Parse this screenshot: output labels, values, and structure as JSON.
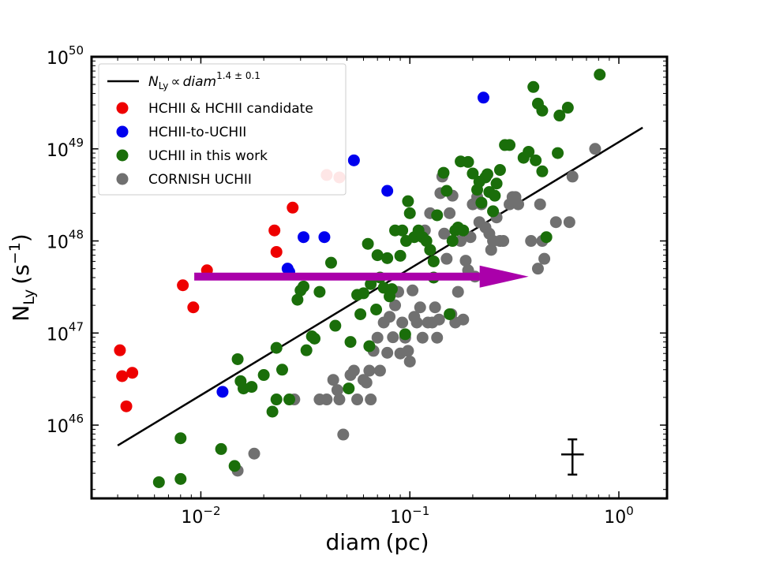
{
  "chart_data": {
    "type": "scatter",
    "xscale": "log",
    "yscale": "log",
    "xlim": [
      0.003,
      1.7
    ],
    "ylim": [
      1.6e+45,
      1e+50
    ],
    "xlabel": {
      "main": "diam",
      "unit": "(pc)"
    },
    "ylabel": {
      "main": "N",
      "sub": "Ly",
      "unit_open": "(s",
      "unit_exp": "−1",
      "unit_close": ")"
    },
    "x_ticks": [
      {
        "value": 0.01,
        "base": "10",
        "exp": "−2"
      },
      {
        "value": 0.1,
        "base": "10",
        "exp": "−1"
      },
      {
        "value": 1,
        "base": "10",
        "exp": "0"
      }
    ],
    "y_ticks": [
      {
        "value": 1e+46,
        "base": "10",
        "exp": "46"
      },
      {
        "value": 1e+47,
        "base": "10",
        "exp": "47"
      },
      {
        "value": 1e+48,
        "base": "10",
        "exp": "48"
      },
      {
        "value": 1e+49,
        "base": "10",
        "exp": "49"
      },
      {
        "value": 1e+50,
        "base": "10",
        "exp": "50"
      }
    ],
    "grid": false,
    "legend_position": "upper-left",
    "fit_line": {
      "label_var": "N",
      "label_sub": "Ly",
      "label_prop": "∝",
      "label_x": "diam",
      "label_exp": "1.4 ± 0.1",
      "x": [
        0.004,
        1.3
      ],
      "y": [
        6e+45,
        1.7e+49
      ],
      "color": "#000000"
    },
    "arrow": {
      "x_start": 0.0093,
      "x_end": 0.37,
      "y": 4.1e+47,
      "color": "#aa00aa"
    },
    "error_bar": {
      "x": 0.6,
      "y": 4.8e+45,
      "x_low": 0.53,
      "x_high": 0.68,
      "y_low": 2.9e+45,
      "y_high": 7e+45,
      "color": "#000000"
    },
    "series": [
      {
        "name": "CORNISH UCHII",
        "color": "#707070",
        "points": [
          [
            0.015,
            3.2e+45
          ],
          [
            0.018,
            4.9e+45
          ],
          [
            0.028,
            1.9e+46
          ],
          [
            0.037,
            1.9e+46
          ],
          [
            0.04,
            1.9e+46
          ],
          [
            0.043,
            3.1e+46
          ],
          [
            0.045,
            2.4e+46
          ],
          [
            0.046,
            1.9e+46
          ],
          [
            0.048,
            7.9e+45
          ],
          [
            0.052,
            3.5e+46
          ],
          [
            0.054,
            3.9e+46
          ],
          [
            0.056,
            1.9e+46
          ],
          [
            0.06,
            3.1e+46
          ],
          [
            0.062,
            2.9e+46
          ],
          [
            0.064,
            3.9e+46
          ],
          [
            0.065,
            1.9e+46
          ],
          [
            0.067,
            6.4e+46
          ],
          [
            0.07,
            8.9e+46
          ],
          [
            0.072,
            3.9e+46
          ],
          [
            0.075,
            1.3e+47
          ],
          [
            0.078,
            6.1e+46
          ],
          [
            0.08,
            1.5e+47
          ],
          [
            0.083,
            9e+46
          ],
          [
            0.085,
            2e+47
          ],
          [
            0.088,
            2.8e+47
          ],
          [
            0.09,
            6e+46
          ],
          [
            0.092,
            1.3e+47
          ],
          [
            0.095,
            8.9e+46
          ],
          [
            0.098,
            6.4e+46
          ],
          [
            0.1,
            4.9e+46
          ],
          [
            0.103,
            2.9e+47
          ],
          [
            0.105,
            1.5e+47
          ],
          [
            0.108,
            1.3e+47
          ],
          [
            0.112,
            1.9e+47
          ],
          [
            0.115,
            8.9e+46
          ],
          [
            0.118,
            1.3e+48
          ],
          [
            0.122,
            1.3e+47
          ],
          [
            0.125,
            2e+48
          ],
          [
            0.128,
            1.3e+47
          ],
          [
            0.132,
            1.9e+47
          ],
          [
            0.135,
            8.9e+46
          ],
          [
            0.138,
            1.4e+47
          ],
          [
            0.14,
            3.3e+48
          ],
          [
            0.143,
            5e+48
          ],
          [
            0.146,
            1.2e+48
          ],
          [
            0.15,
            6.4e+47
          ],
          [
            0.155,
            2e+48
          ],
          [
            0.158,
            1.6e+47
          ],
          [
            0.16,
            3.1e+48
          ],
          [
            0.165,
            1.3e+47
          ],
          [
            0.17,
            2.8e+47
          ],
          [
            0.175,
            1e+48
          ],
          [
            0.18,
            1.4e+47
          ],
          [
            0.185,
            6.1e+47
          ],
          [
            0.19,
            4.8e+47
          ],
          [
            0.195,
            1.1e+48
          ],
          [
            0.2,
            2.5e+48
          ],
          [
            0.205,
            4.1e+47
          ],
          [
            0.21,
            3e+48
          ],
          [
            0.215,
            1.6e+48
          ],
          [
            0.22,
            2.5e+48
          ],
          [
            0.23,
            1.4e+48
          ],
          [
            0.24,
            1.2e+48
          ],
          [
            0.245,
            8e+47
          ],
          [
            0.25,
            1e+48
          ],
          [
            0.26,
            1.8e+48
          ],
          [
            0.27,
            1e+48
          ],
          [
            0.28,
            1e+48
          ],
          [
            0.3,
            2.5e+48
          ],
          [
            0.31,
            3e+48
          ],
          [
            0.32,
            3e+48
          ],
          [
            0.33,
            2.5e+48
          ],
          [
            0.38,
            1e+48
          ],
          [
            0.41,
            5e+47
          ],
          [
            0.42,
            2.5e+48
          ],
          [
            0.43,
            1e+48
          ],
          [
            0.44,
            6.4e+47
          ],
          [
            0.5,
            1.6e+48
          ],
          [
            0.58,
            1.6e+48
          ],
          [
            0.6,
            5e+48
          ],
          [
            0.77,
            1e+49
          ]
        ]
      },
      {
        "name": "UCHII in this work",
        "color": "#1a6e0a",
        "points": [
          [
            0.0063,
            2.4e+45
          ],
          [
            0.008,
            2.6e+45
          ],
          [
            0.008,
            7.2e+45
          ],
          [
            0.0125,
            5.5e+45
          ],
          [
            0.0145,
            3.6e+45
          ],
          [
            0.015,
            5.2e+46
          ],
          [
            0.0155,
            3e+46
          ],
          [
            0.016,
            2.5e+46
          ],
          [
            0.0175,
            2.6e+46
          ],
          [
            0.02,
            3.5e+46
          ],
          [
            0.022,
            1.4e+46
          ],
          [
            0.023,
            1.9e+46
          ],
          [
            0.023,
            6.9e+46
          ],
          [
            0.0245,
            4e+46
          ],
          [
            0.0265,
            1.9e+46
          ],
          [
            0.029,
            2.3e+47
          ],
          [
            0.03,
            2.9e+47
          ],
          [
            0.031,
            3.2e+47
          ],
          [
            0.032,
            6.5e+46
          ],
          [
            0.034,
            9.2e+46
          ],
          [
            0.035,
            8.7e+46
          ],
          [
            0.037,
            2.8e+47
          ],
          [
            0.042,
            5.8e+47
          ],
          [
            0.044,
            1.2e+47
          ],
          [
            0.051,
            2.5e+46
          ],
          [
            0.052,
            8e+46
          ],
          [
            0.056,
            2.6e+47
          ],
          [
            0.058,
            1.6e+47
          ],
          [
            0.06,
            2.7e+47
          ],
          [
            0.063,
            9.3e+47
          ],
          [
            0.064,
            7.2e+46
          ],
          [
            0.065,
            3.4e+47
          ],
          [
            0.069,
            1.8e+47
          ],
          [
            0.07,
            7e+47
          ],
          [
            0.072,
            4e+47
          ],
          [
            0.075,
            3.1e+47
          ],
          [
            0.078,
            6.5e+47
          ],
          [
            0.08,
            2.5e+47
          ],
          [
            0.082,
            3e+47
          ],
          [
            0.085,
            1.3e+48
          ],
          [
            0.09,
            6.9e+47
          ],
          [
            0.092,
            1.3e+48
          ],
          [
            0.095,
            9.7e+46
          ],
          [
            0.096,
            1e+48
          ],
          [
            0.098,
            2.7e+48
          ],
          [
            0.1,
            2e+48
          ],
          [
            0.105,
            1.1e+48
          ],
          [
            0.11,
            1.3e+48
          ],
          [
            0.115,
            1.1e+48
          ],
          [
            0.12,
            1e+48
          ],
          [
            0.125,
            8e+47
          ],
          [
            0.13,
            6e+47
          ],
          [
            0.13,
            4e+47
          ],
          [
            0.135,
            1.9e+48
          ],
          [
            0.145,
            5.5e+48
          ],
          [
            0.15,
            3.5e+48
          ],
          [
            0.155,
            1.6e+47
          ],
          [
            0.16,
            1e+48
          ],
          [
            0.165,
            1.3e+48
          ],
          [
            0.17,
            1.4e+48
          ],
          [
            0.175,
            7.3e+48
          ],
          [
            0.18,
            1.3e+48
          ],
          [
            0.19,
            7.2e+48
          ],
          [
            0.2,
            5.4e+48
          ],
          [
            0.21,
            3.6e+48
          ],
          [
            0.215,
            4.4e+48
          ],
          [
            0.22,
            2.6e+48
          ],
          [
            0.23,
            4.9e+48
          ],
          [
            0.235,
            5.3e+48
          ],
          [
            0.24,
            3.4e+48
          ],
          [
            0.25,
            2.1e+48
          ],
          [
            0.255,
            3.1e+48
          ],
          [
            0.26,
            4.2e+48
          ],
          [
            0.27,
            5.9e+48
          ],
          [
            0.285,
            1.1e+49
          ],
          [
            0.3,
            1.1e+49
          ],
          [
            0.35,
            8e+48
          ],
          [
            0.37,
            9.3e+48
          ],
          [
            0.4,
            7.5e+48
          ],
          [
            0.43,
            5.7e+48
          ],
          [
            0.45,
            1.1e+48
          ],
          [
            0.39,
            4.7e+49
          ],
          [
            0.41,
            3.1e+49
          ],
          [
            0.43,
            2.6e+49
          ],
          [
            0.52,
            2.3e+49
          ],
          [
            0.57,
            2.8e+49
          ],
          [
            0.51,
            9e+48
          ],
          [
            0.81,
            6.4e+49
          ]
        ]
      },
      {
        "name": "HCHII-to-UCHII",
        "color": "#0000ee",
        "points": [
          [
            0.0127,
            2.3e+46
          ],
          [
            0.026,
            5e+47
          ],
          [
            0.0265,
            4.6e+47
          ],
          [
            0.031,
            1.1e+48
          ],
          [
            0.039,
            1.1e+48
          ],
          [
            0.054,
            7.5e+48
          ],
          [
            0.078,
            3.5e+48
          ],
          [
            0.225,
            3.6e+49
          ]
        ]
      },
      {
        "name": "HCHII & HCHII candidate",
        "color": "#ee0000",
        "points": [
          [
            0.0041,
            6.5e+46
          ],
          [
            0.0042,
            3.4e+46
          ],
          [
            0.0044,
            1.6e+46
          ],
          [
            0.0047,
            3.7e+46
          ],
          [
            0.0082,
            3.3e+47
          ],
          [
            0.0092,
            1.9e+47
          ],
          [
            0.0107,
            4.8e+47
          ],
          [
            0.0225,
            1.3e+48
          ],
          [
            0.023,
            7.6e+47
          ],
          [
            0.0275,
            2.3e+48
          ],
          [
            0.04,
            5.2e+48
          ],
          [
            0.046,
            4.9e+48
          ]
        ]
      }
    ]
  }
}
